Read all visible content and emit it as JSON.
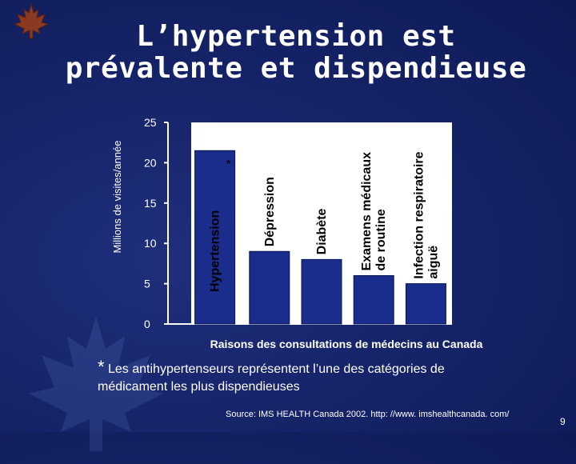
{
  "title": "L’hypertension est prévalente et dispendieuse",
  "footnote": {
    "star": "*",
    "text": " Les antihypertenseurs représentent l’une des catégories de médicament les plus dispendieuses"
  },
  "source": "Source: IMS HEALTH Canada 2002. http: //www. imshealthcanada. com/",
  "page_number": "9",
  "colors": {
    "bar": "#1a2c8c",
    "plot_bg": "#ffffff",
    "text": "#ffffff"
  },
  "chart_data": {
    "type": "bar",
    "categories": [
      [
        "Hypertension"
      ],
      [
        "Dépression"
      ],
      [
        "Diabète"
      ],
      [
        "Examens médicaux",
        "de routine"
      ],
      [
        "Infection respiratoire",
        "aiguë"
      ]
    ],
    "values": [
      21.5,
      9.0,
      8.0,
      6.0,
      5.0
    ],
    "annotations": [
      "*",
      "",
      "",
      "",
      ""
    ],
    "ylabel": "Millions de visites/année",
    "xlabel": "Raisons des consultations de médecins au Canada",
    "ylim": [
      0,
      25
    ],
    "yticks": [
      0,
      5,
      10,
      15,
      20,
      25
    ],
    "grid": false,
    "legend": "none"
  }
}
